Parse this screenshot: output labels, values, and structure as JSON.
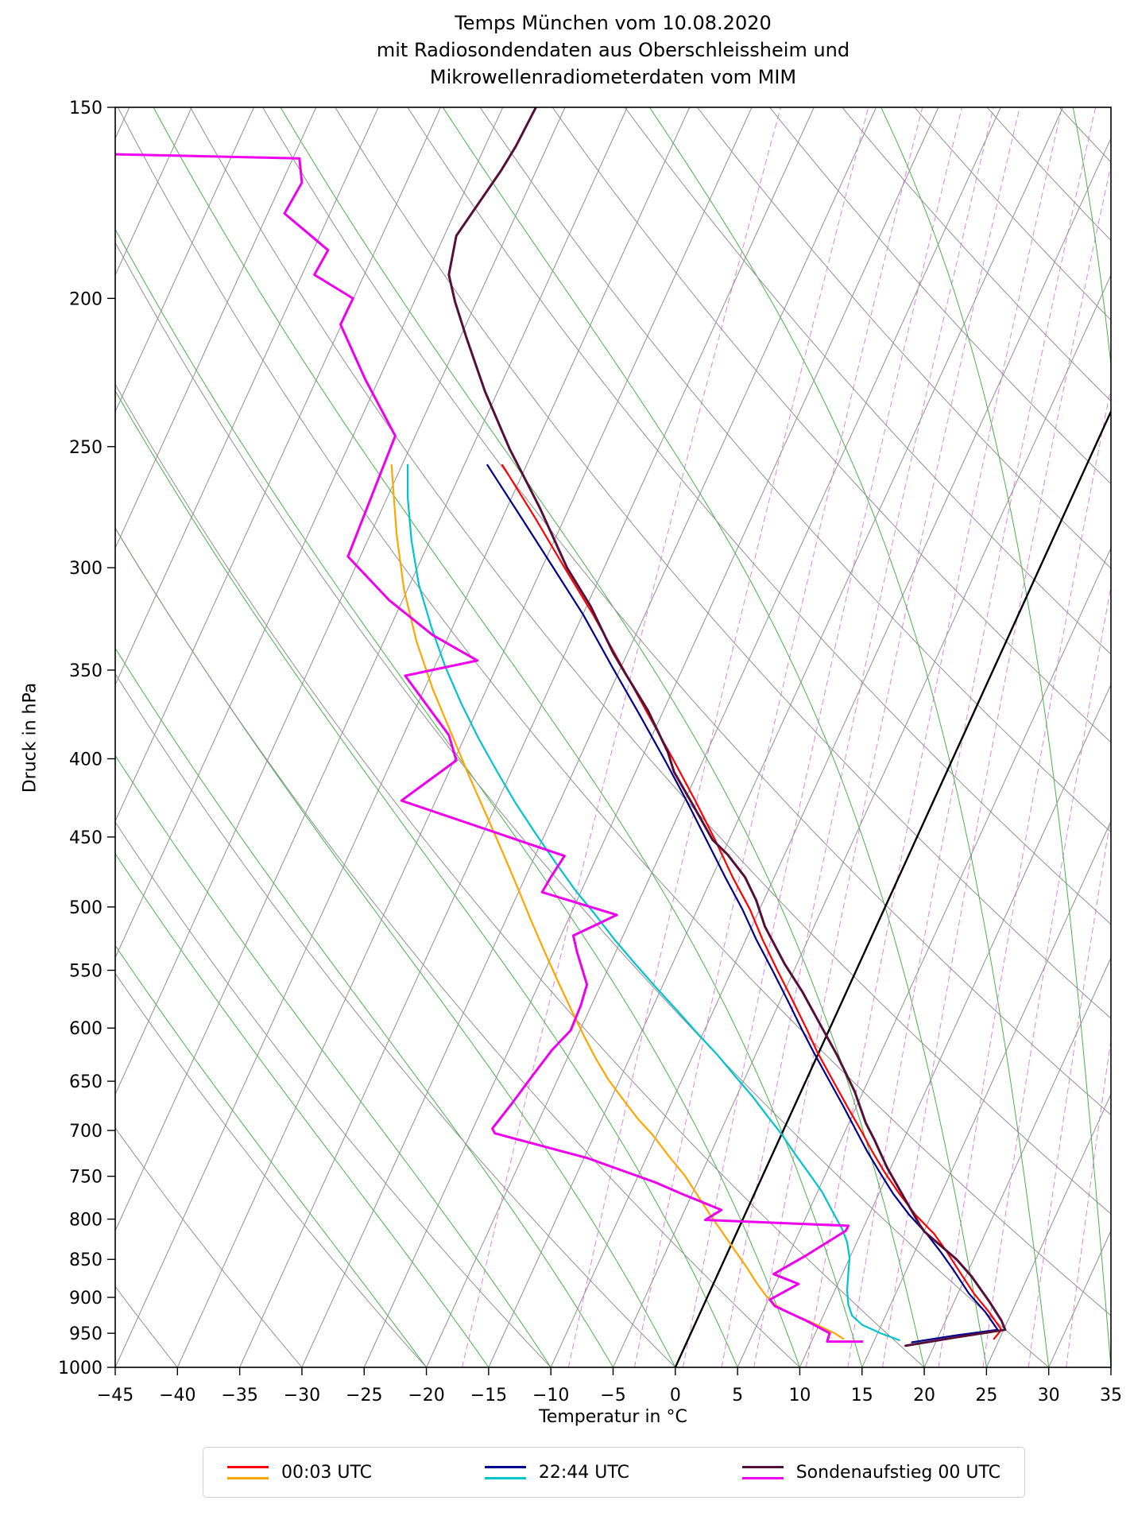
{
  "chart_data": {
    "type": "line",
    "diagram": "skew-T log-p sounding",
    "title_lines": [
      "Temps München vom 10.08.2020",
      "mit Radiosondendaten aus Oberschleissheim und",
      "Mikrowellenradiometerdaten vom MIM"
    ],
    "x_axis": {
      "label": "Temperatur in °C",
      "min": -45,
      "max": 35,
      "ticks": [
        -45,
        -40,
        -35,
        -30,
        -25,
        -20,
        -15,
        -10,
        -5,
        0,
        5,
        10,
        15,
        20,
        25,
        30,
        35
      ]
    },
    "y_axis": {
      "label": "Druck in hPa",
      "scale": "log",
      "top_hPa": 150,
      "bottom_hPa": 1000,
      "ticks": [
        150,
        200,
        250,
        300,
        350,
        400,
        450,
        500,
        550,
        600,
        650,
        700,
        750,
        800,
        850,
        900,
        950,
        1000
      ]
    },
    "skew_degC_per_decade": 56,
    "background": {
      "isotherms_degC": {
        "min": -95,
        "max": 60,
        "step": 5,
        "color": "#909090",
        "zero_highlight_color": "#000000"
      },
      "dry_adiabats_theta_degC": {
        "min": -40,
        "max": 180,
        "step": 10,
        "color": "#909090"
      },
      "moist_adiabats_thetaw_degC": {
        "min": -20,
        "max": 40,
        "step": 5,
        "color": "#46b346"
      },
      "mixing_ratio_g_per_kg": [
        1,
        2,
        3,
        4,
        5,
        6,
        8,
        10,
        12,
        16,
        20,
        25,
        30
      ],
      "mixing_ratio_color": "#e67fe6"
    },
    "series": [
      {
        "name": "00:03 UTC Temperatur",
        "color": "#ff0000",
        "width": 2.2,
        "points": [
          [
            25.6,
            958
          ],
          [
            26.2,
            945
          ],
          [
            25.2,
            920
          ],
          [
            24.0,
            895
          ],
          [
            22.8,
            865
          ],
          [
            21.8,
            840
          ],
          [
            20.8,
            818
          ],
          [
            19.3,
            795
          ],
          [
            18.0,
            770
          ],
          [
            16.8,
            745
          ],
          [
            15.8,
            722
          ],
          [
            15.0,
            702
          ],
          [
            13.8,
            675
          ],
          [
            12.6,
            648
          ],
          [
            11.4,
            622
          ],
          [
            10.6,
            602
          ],
          [
            9.4,
            575
          ],
          [
            8.2,
            550
          ],
          [
            7.0,
            525
          ],
          [
            6.0,
            502
          ],
          [
            4.6,
            478
          ],
          [
            3.2,
            452
          ],
          [
            1.6,
            426
          ],
          [
            -0.2,
            400
          ],
          [
            -2.2,
            374
          ],
          [
            -4.3,
            348
          ],
          [
            -6.6,
            322
          ],
          [
            -8.9,
            300
          ],
          [
            -11.3,
            278
          ],
          [
            -13.9,
            257
          ]
        ]
      },
      {
        "name": "00:03 UTC Taupunkt",
        "color": "#ffa500",
        "width": 2.2,
        "points": [
          [
            13.5,
            958
          ],
          [
            12.8,
            950
          ],
          [
            11.0,
            935
          ],
          [
            9.0,
            920
          ],
          [
            8.0,
            910
          ],
          [
            7.3,
            898
          ],
          [
            6.5,
            880
          ],
          [
            5.8,
            862
          ],
          [
            5.2,
            848
          ],
          [
            4.4,
            830
          ],
          [
            3.6,
            812
          ],
          [
            2.8,
            795
          ],
          [
            1.8,
            772
          ],
          [
            0.8,
            750
          ],
          [
            -0.5,
            728
          ],
          [
            -1.8,
            705
          ],
          [
            -3.0,
            688
          ],
          [
            -4.2,
            668
          ],
          [
            -5.4,
            648
          ],
          [
            -6.4,
            628
          ],
          [
            -7.3,
            608
          ],
          [
            -8.3,
            585
          ],
          [
            -9.4,
            560
          ],
          [
            -10.5,
            535
          ],
          [
            -11.6,
            510
          ],
          [
            -12.7,
            485
          ],
          [
            -13.9,
            460
          ],
          [
            -15.2,
            435
          ],
          [
            -16.6,
            410
          ],
          [
            -18.0,
            385
          ],
          [
            -19.5,
            360
          ],
          [
            -20.8,
            335
          ],
          [
            -21.8,
            310
          ],
          [
            -22.4,
            285
          ],
          [
            -22.8,
            257
          ]
        ]
      },
      {
        "name": "22:44 UTC Temperatur",
        "color": "#00008b",
        "width": 2.2,
        "points": [
          [
            19.0,
            963
          ],
          [
            22.5,
            953
          ],
          [
            25.9,
            945
          ],
          [
            24.9,
            920
          ],
          [
            23.6,
            895
          ],
          [
            22.4,
            865
          ],
          [
            21.3,
            840
          ],
          [
            20.2,
            818
          ],
          [
            18.8,
            795
          ],
          [
            17.5,
            770
          ],
          [
            16.4,
            745
          ],
          [
            15.4,
            722
          ],
          [
            14.6,
            702
          ],
          [
            13.5,
            675
          ],
          [
            12.3,
            648
          ],
          [
            11.1,
            622
          ],
          [
            10.2,
            602
          ],
          [
            9.0,
            575
          ],
          [
            7.8,
            550
          ],
          [
            6.5,
            525
          ],
          [
            5.4,
            502
          ],
          [
            4.0,
            478
          ],
          [
            2.5,
            452
          ],
          [
            0.9,
            426
          ],
          [
            -0.9,
            400
          ],
          [
            -2.9,
            374
          ],
          [
            -5.1,
            348
          ],
          [
            -7.4,
            322
          ],
          [
            -9.8,
            300
          ],
          [
            -12.4,
            278
          ],
          [
            -15.1,
            257
          ]
        ]
      },
      {
        "name": "22:44 UTC Taupunkt",
        "color": "#00c4cc",
        "width": 2.2,
        "points": [
          [
            18.0,
            960
          ],
          [
            16.5,
            950
          ],
          [
            15.0,
            938
          ],
          [
            14.2,
            925
          ],
          [
            13.9,
            910
          ],
          [
            13.8,
            890
          ],
          [
            13.9,
            868
          ],
          [
            14.0,
            848
          ],
          [
            13.8,
            828
          ],
          [
            13.4,
            812
          ],
          [
            12.6,
            790
          ],
          [
            11.8,
            768
          ],
          [
            10.8,
            748
          ],
          [
            9.6,
            725
          ],
          [
            8.6,
            705
          ],
          [
            7.4,
            685
          ],
          [
            6.2,
            665
          ],
          [
            4.8,
            645
          ],
          [
            3.4,
            625
          ],
          [
            1.8,
            605
          ],
          [
            0.2,
            585
          ],
          [
            -1.5,
            565
          ],
          [
            -3.2,
            545
          ],
          [
            -4.9,
            525
          ],
          [
            -6.5,
            505
          ],
          [
            -8.0,
            488
          ],
          [
            -9.6,
            468
          ],
          [
            -11.2,
            448
          ],
          [
            -12.8,
            428
          ],
          [
            -14.3,
            408
          ],
          [
            -15.8,
            388
          ],
          [
            -17.2,
            368
          ],
          [
            -18.5,
            348
          ],
          [
            -19.6,
            328
          ],
          [
            -20.6,
            308
          ],
          [
            -21.2,
            288
          ],
          [
            -21.5,
            270
          ],
          [
            -21.5,
            257
          ]
        ]
      },
      {
        "name": "Sondenaufstieg 00 UTC Temperatur",
        "color": "#55103a",
        "width": 3,
        "points": [
          [
            18.5,
            968
          ],
          [
            22.5,
            956
          ],
          [
            26.5,
            945
          ],
          [
            26.2,
            932
          ],
          [
            25.2,
            905
          ],
          [
            23.8,
            872
          ],
          [
            22.6,
            850
          ],
          [
            20.0,
            815
          ],
          [
            19.6,
            806
          ],
          [
            18.4,
            775
          ],
          [
            17.0,
            740
          ],
          [
            16.0,
            710
          ],
          [
            15.3,
            692
          ],
          [
            14.4,
            660
          ],
          [
            13.0,
            625
          ],
          [
            11.8,
            600
          ],
          [
            10.2,
            568
          ],
          [
            8.8,
            545
          ],
          [
            7.2,
            515
          ],
          [
            6.5,
            495
          ],
          [
            5.6,
            478
          ],
          [
            4.2,
            462
          ],
          [
            3.0,
            452
          ],
          [
            1.5,
            430
          ],
          [
            -0.1,
            408
          ],
          [
            -0.6,
            396
          ],
          [
            -2.2,
            372
          ],
          [
            -4.0,
            352
          ],
          [
            -5.0,
            341
          ],
          [
            -6.8,
            318
          ],
          [
            -8.7,
            300
          ],
          [
            -10.9,
            274
          ],
          [
            -13.3,
            251
          ],
          [
            -15.3,
            230
          ],
          [
            -16.8,
            212
          ],
          [
            -17.7,
            201
          ],
          [
            -18.2,
            193
          ],
          [
            -17.6,
            182
          ],
          [
            -14.0,
            165
          ],
          [
            -12.8,
            159
          ],
          [
            -11.2,
            150
          ]
        ]
      },
      {
        "name": "Sondenaufstieg 00 UTC Taupunkt",
        "color": "#ee00ee",
        "width": 3,
        "points": [
          [
            15.0,
            962
          ],
          [
            12.2,
            962
          ],
          [
            12.4,
            950
          ],
          [
            10.5,
            932
          ],
          [
            8.0,
            912
          ],
          [
            7.6,
            903
          ],
          [
            9.9,
            882
          ],
          [
            7.9,
            869
          ],
          [
            10.5,
            845
          ],
          [
            13.7,
            814
          ],
          [
            13.9,
            808
          ],
          [
            2.4,
            801
          ],
          [
            3.7,
            789
          ],
          [
            0.5,
            770
          ],
          [
            -1.6,
            757
          ],
          [
            -7.0,
            730
          ],
          [
            -14.5,
            703
          ],
          [
            -14.7,
            698
          ],
          [
            -13.0,
            670
          ],
          [
            -11.5,
            645
          ],
          [
            -9.9,
            620
          ],
          [
            -8.4,
            602
          ],
          [
            -7.6,
            580
          ],
          [
            -7.1,
            562
          ],
          [
            -7.9,
            535
          ],
          [
            -8.2,
            522
          ],
          [
            -4.7,
            506
          ],
          [
            -10.7,
            489
          ],
          [
            -10.0,
            478
          ],
          [
            -8.9,
            463
          ],
          [
            -22.0,
            426
          ],
          [
            -17.6,
            401
          ],
          [
            -18.2,
            386
          ],
          [
            -21.7,
            353
          ],
          [
            -15.9,
            345
          ],
          [
            -19.5,
            332
          ],
          [
            -23.0,
            315
          ],
          [
            -26.3,
            295
          ],
          [
            -23.9,
            263
          ],
          [
            -22.5,
            246
          ],
          [
            -24.9,
            226
          ],
          [
            -26.9,
            208
          ],
          [
            -25.9,
            200
          ],
          [
            -29.0,
            193
          ],
          [
            -27.9,
            186
          ],
          [
            -31.4,
            176
          ],
          [
            -30.0,
            168
          ],
          [
            -30.2,
            162
          ],
          [
            -44.9,
            161
          ]
        ]
      }
    ],
    "legend": [
      {
        "label": "00:03 UTC",
        "colors": [
          "#ff0000",
          "#ffa500"
        ]
      },
      {
        "label": "22:44 UTC",
        "colors": [
          "#00008b",
          "#00c4cc"
        ]
      },
      {
        "label": "Sondenaufstieg 00 UTC",
        "colors": [
          "#55103a",
          "#ee00ee"
        ]
      }
    ]
  }
}
